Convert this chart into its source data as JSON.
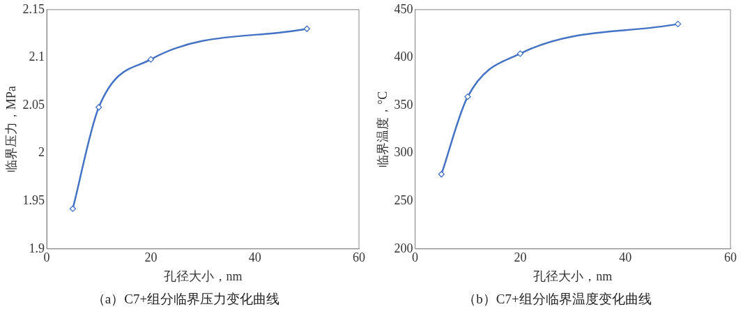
{
  "chart_data": [
    {
      "type": "line",
      "xlabel": "孔径大小，nm",
      "ylabel": "临界压力，MPa",
      "x": [
        5,
        10,
        20,
        50
      ],
      "series": [
        {
          "color": "#4472c4",
          "values": [
            1.942,
            2.048,
            2.098,
            2.13
          ]
        }
      ],
      "xlim": [
        0,
        60
      ],
      "xticks": [
        0,
        20,
        40,
        60
      ],
      "ylim": [
        1.9,
        2.15
      ],
      "yticks": [
        {
          "value": 1.9,
          "label": "1.9"
        },
        1.95,
        2,
        2.05,
        {
          "value": 2.1,
          "label": "2.1"
        },
        2.15
      ],
      "grid": false,
      "legend": false,
      "marker": "diamond",
      "line_style": "solid",
      "annotations": [
        "（a）C7+组分临界压力变化曲线"
      ]
    },
    {
      "type": "line",
      "xlabel": "孔径大小，nm",
      "ylabel": "临界温度，°C",
      "x": [
        5,
        10,
        20,
        50
      ],
      "series": [
        {
          "color": "#4472c4",
          "values": [
            278,
            359,
            404,
            435
          ]
        }
      ],
      "xlim": [
        0,
        60
      ],
      "xticks": [
        0,
        20,
        40,
        60
      ],
      "ylim": [
        200,
        450
      ],
      "yticks": [
        200,
        250,
        300,
        350,
        400,
        450
      ],
      "grid": false,
      "legend": false,
      "marker": "diamond",
      "line_style": "solid",
      "annotations": [
        "（b）C7+组分临界温度变化曲线"
      ]
    }
  ]
}
